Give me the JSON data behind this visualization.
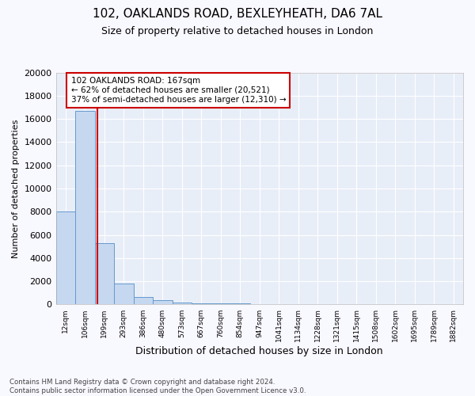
{
  "title": "102, OAKLANDS ROAD, BEXLEYHEATH, DA6 7AL",
  "subtitle": "Size of property relative to detached houses in London",
  "xlabel": "Distribution of detached houses by size in London",
  "ylabel": "Number of detached properties",
  "categories": [
    "12sqm",
    "106sqm",
    "199sqm",
    "293sqm",
    "386sqm",
    "480sqm",
    "573sqm",
    "667sqm",
    "760sqm",
    "854sqm",
    "947sqm",
    "1041sqm",
    "1134sqm",
    "1228sqm",
    "1321sqm",
    "1415sqm",
    "1508sqm",
    "1602sqm",
    "1695sqm",
    "1789sqm",
    "1882sqm"
  ],
  "values": [
    8050,
    16700,
    5300,
    1800,
    650,
    350,
    200,
    130,
    90,
    70,
    55,
    45,
    35,
    25,
    20,
    18,
    15,
    12,
    10,
    8,
    8
  ],
  "bar_color": "#c5d8f0",
  "bar_edge_color": "#6699cc",
  "background_color": "#e8eef8",
  "grid_color": "#ffffff",
  "annotation_line1": "102 OAKLANDS ROAD: 167sqm",
  "annotation_line2": "← 62% of detached houses are smaller (20,521)",
  "annotation_line3": "37% of semi-detached houses are larger (12,310) →",
  "annotation_box_facecolor": "#ffffff",
  "annotation_box_edgecolor": "#cc0000",
  "property_line_color": "#cc0000",
  "property_line_x": 1.65,
  "ylim": [
    0,
    20000
  ],
  "yticks": [
    0,
    2000,
    4000,
    6000,
    8000,
    10000,
    12000,
    14000,
    16000,
    18000,
    20000
  ],
  "fig_facecolor": "#f8f8ff",
  "title_fontsize": 11,
  "subtitle_fontsize": 9,
  "ylabel_fontsize": 8,
  "xlabel_fontsize": 9,
  "footnote": "Contains HM Land Registry data © Crown copyright and database right 2024.\nContains public sector information licensed under the Open Government Licence v3.0."
}
